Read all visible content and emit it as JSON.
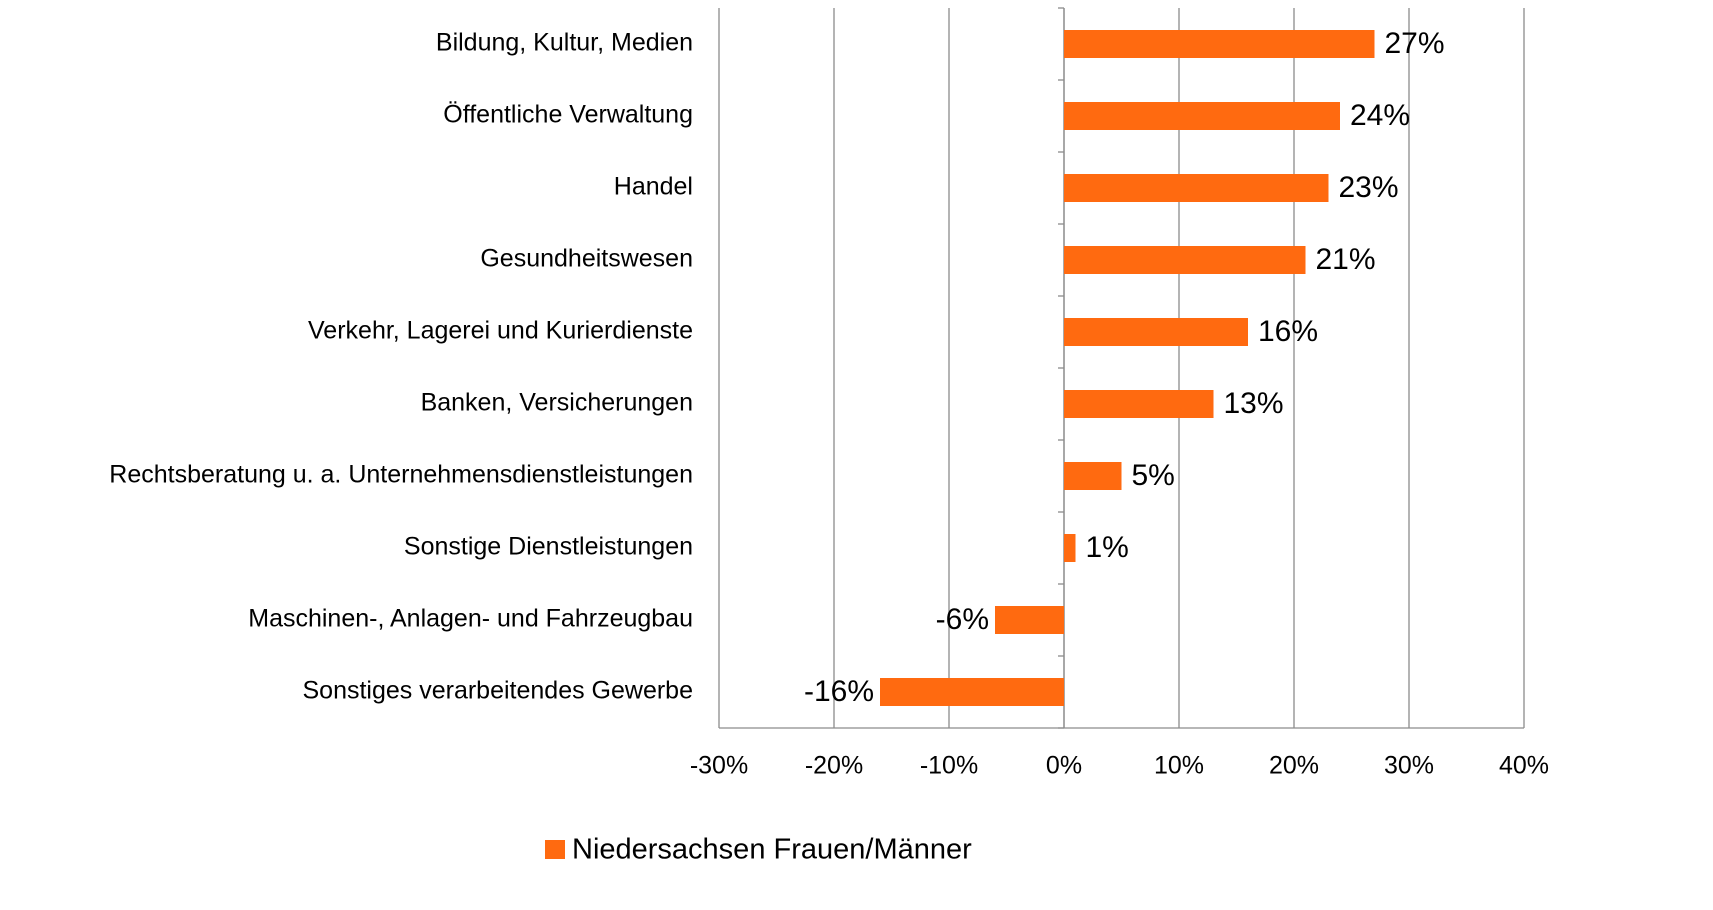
{
  "chart_data": {
    "type": "barh",
    "categories": [
      "Bildung, Kultur, Medien",
      "Öffentliche Verwaltung",
      "Handel",
      "Gesundheitswesen",
      "Verkehr, Lagerei und Kurierdienste",
      "Banken, Versicherungen",
      "Rechtsberatung u. a. Unternehmensdienstleistungen",
      "Sonstige Dienstleistungen",
      "Maschinen-, Anlagen- und Fahrzeugbau",
      "Sonstiges verarbeitendes Gewerbe"
    ],
    "series": [
      {
        "name": "Niedersachsen Frauen/Männer",
        "color": "#ff6a10",
        "values": [
          27,
          24,
          23,
          21,
          16,
          13,
          5,
          1,
          -6,
          -16
        ],
        "value_labels": [
          "27%",
          "24%",
          "23%",
          "21%",
          "16%",
          "13%",
          "5%",
          "1%",
          "-6%",
          "-16%"
        ]
      }
    ],
    "xlim": [
      -30,
      40
    ],
    "xticks": [
      {
        "value": -30,
        "label": "-30%"
      },
      {
        "value": -20,
        "label": "-20%"
      },
      {
        "value": -10,
        "label": "-10%"
      },
      {
        "value": 0,
        "label": "0%"
      },
      {
        "value": 10,
        "label": "10%"
      },
      {
        "value": 20,
        "label": "20%"
      },
      {
        "value": 30,
        "label": "30%"
      },
      {
        "value": 40,
        "label": "40%"
      }
    ],
    "grid": true,
    "legend": "bottom"
  }
}
